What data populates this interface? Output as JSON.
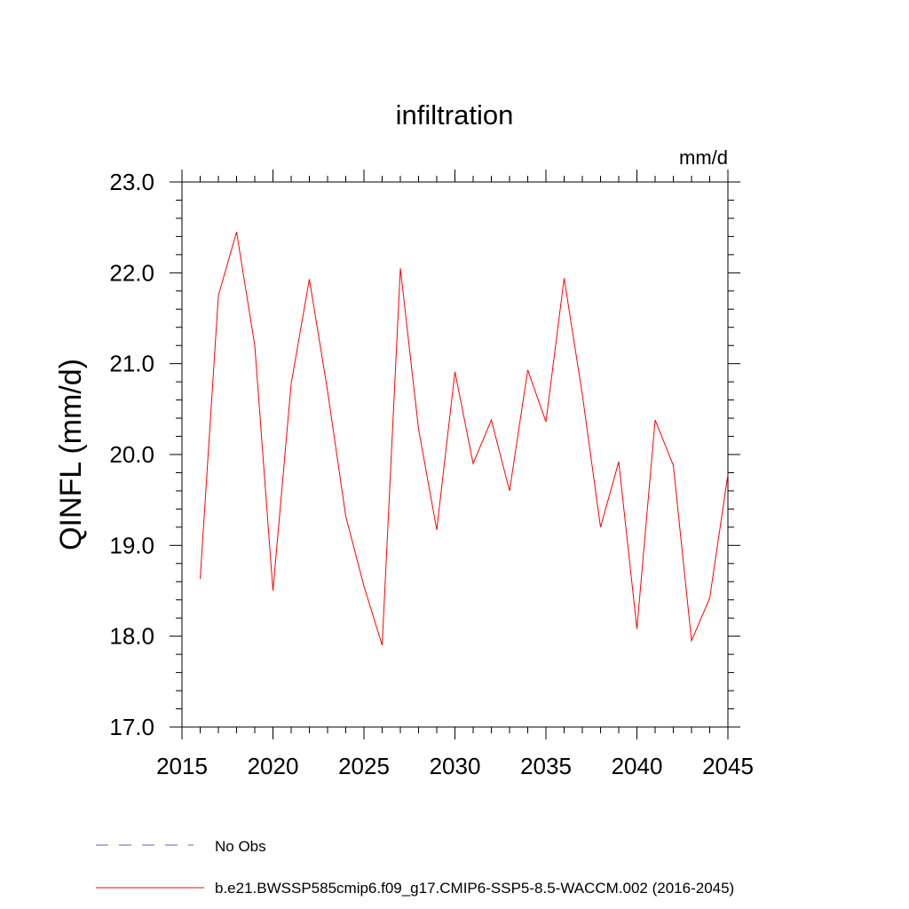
{
  "chart_data": {
    "type": "line",
    "title": "infiltration",
    "units_label": "mm/d",
    "ylabel": "QINFL  (mm/d)",
    "xlabel": "",
    "xlim": [
      2015,
      2045
    ],
    "ylim": [
      17.0,
      23.0
    ],
    "x_ticks": [
      2015,
      2020,
      2025,
      2030,
      2035,
      2040,
      2045
    ],
    "x_tick_labels": [
      "2015",
      "2020",
      "2025",
      "2030",
      "2035",
      "2040",
      "2045"
    ],
    "y_ticks": [
      17.0,
      18.0,
      19.0,
      20.0,
      21.0,
      22.0,
      23.0
    ],
    "y_tick_labels": [
      "17.0",
      "18.0",
      "19.0",
      "20.0",
      "21.0",
      "22.0",
      "23.0"
    ],
    "grid": false,
    "legend_position": "bottom",
    "series": [
      {
        "name": "b.e21.BWSSP585cmip6.f09_g17.CMIP6-SSP5-8.5-WACCM.002 (2016-2045)",
        "color": "#ff0000",
        "x": [
          2016,
          2017,
          2018,
          2019,
          2020,
          2021,
          2022,
          2023,
          2024,
          2025,
          2026,
          2027,
          2028,
          2029,
          2030,
          2031,
          2032,
          2033,
          2034,
          2035,
          2036,
          2037,
          2038,
          2039,
          2040,
          2041,
          2042,
          2043,
          2044,
          2045
        ],
        "values": [
          18.63,
          21.75,
          22.45,
          21.2,
          18.5,
          20.78,
          21.93,
          20.7,
          19.32,
          18.55,
          17.9,
          22.05,
          20.28,
          19.17,
          20.91,
          19.9,
          20.38,
          19.6,
          20.93,
          20.36,
          21.94,
          20.66,
          19.2,
          19.92,
          18.08,
          20.38,
          19.88,
          17.95,
          18.42,
          19.78
        ]
      }
    ],
    "legend": [
      {
        "label": "No Obs",
        "color": "#6a5acd",
        "style": "dashed"
      },
      {
        "label": "b.e21.BWSSP585cmip6.f09_g17.CMIP6-SSP5-8.5-WACCM.002 (2016-2045)",
        "color": "#ff0000",
        "style": "solid"
      }
    ]
  }
}
